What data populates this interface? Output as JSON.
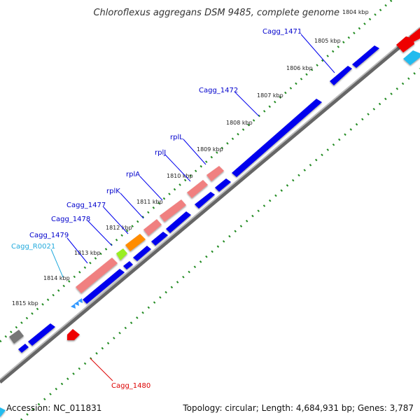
{
  "title": "Chloroflexus aggregans DSM 9485, complete genome",
  "footer": {
    "accession": "Accession: NC_011831",
    "summary": "Topology: circular; Length: 4,684,931 bp; Genes: 3,787"
  },
  "ticks": [
    "1804 kbp",
    "1805 kbp",
    "1806 kbp",
    "1807 kbp",
    "1808 kbp",
    "1809 kbp",
    "1810 kbp",
    "1811 kbp",
    "1812 kbp",
    "1813 kbp",
    "1814 kbp",
    "1815 kbp"
  ],
  "gene_labels": [
    "Cagg_1471",
    "Cagg_1472",
    "rplL",
    "rplJ",
    "rplA",
    "rplK",
    "Cagg_1477",
    "Cagg_1478",
    "Cagg_1479",
    "Cagg_R0021",
    "Cagg_1480"
  ],
  "colors": {
    "cds": "#0000ee",
    "rrna_ribosomal_protein": "#f08080",
    "trna": "#5ab4e6",
    "reverse_cds": "#ee0000",
    "tick": "#228b22",
    "backbone": "#999999"
  }
}
